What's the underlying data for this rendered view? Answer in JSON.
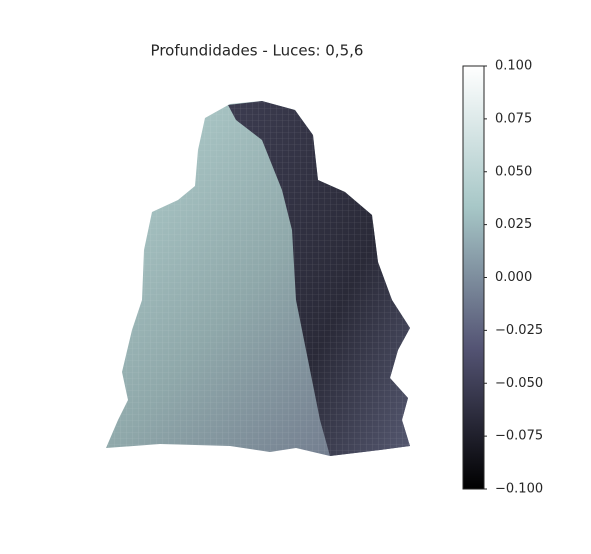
{
  "chart_data": {
    "type": "surface3d",
    "title": "Profundidades - Luces: 0,5,6",
    "colormap": [
      "#000000",
      "#545474",
      "#a7c7c7",
      "#ffffff"
    ],
    "clim": [
      -0.1,
      0.1
    ],
    "cticks": [
      {
        "value": 0.1,
        "label": "0.100"
      },
      {
        "value": 0.075,
        "label": "0.075"
      },
      {
        "value": 0.05,
        "label": "0.050"
      },
      {
        "value": 0.025,
        "label": "0.025"
      },
      {
        "value": 0,
        "label": "0.000"
      },
      {
        "value": -0.025,
        "label": "−0.025"
      },
      {
        "value": -0.05,
        "label": "−0.050"
      },
      {
        "value": -0.075,
        "label": "−0.075"
      },
      {
        "value": -0.1,
        "label": "−0.100"
      }
    ]
  }
}
